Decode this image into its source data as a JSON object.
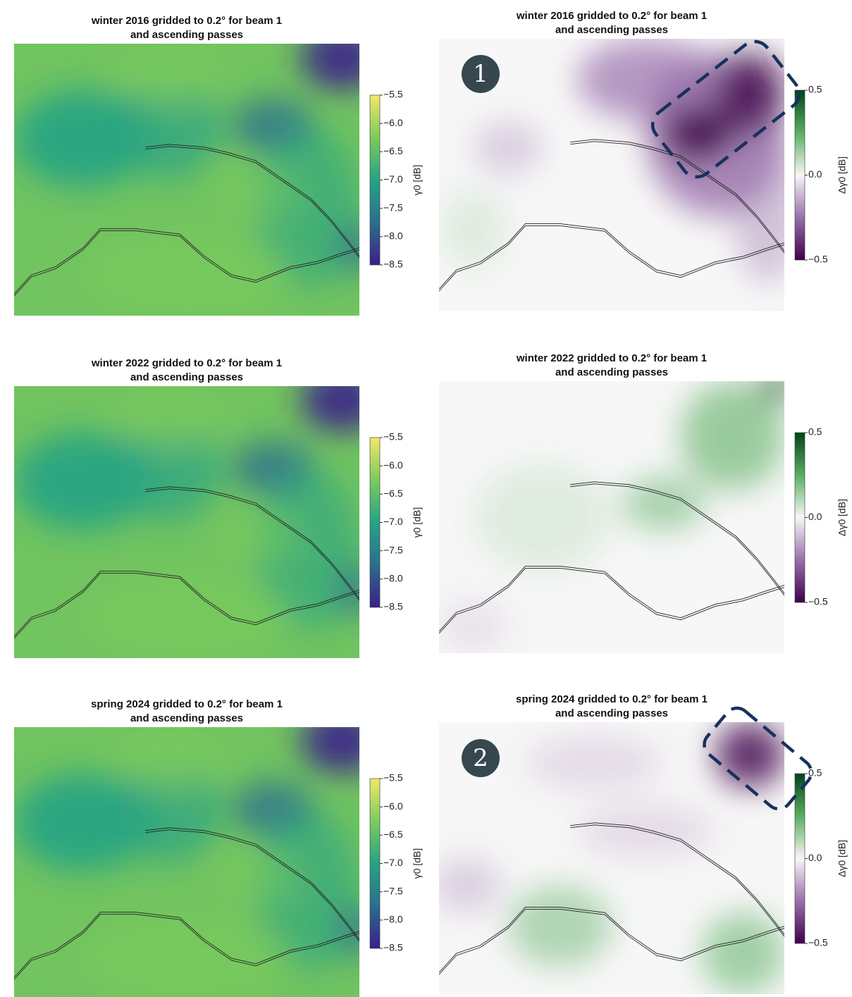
{
  "chart_data": [
    {
      "type": "heatmap",
      "title": "winter 2016 gridded to 0.2° for beam 1\nand ascending passes",
      "colorbar_label": "γ0 [dB]",
      "clim": [
        -8.5,
        -5.5
      ],
      "colormap": [
        "#3b1f8a",
        "#2c6e8e",
        "#26a384",
        "#7ccb5c",
        "#f3e76b"
      ],
      "cticks": [
        {
          "value": -5.5,
          "label": "−5.5"
        },
        {
          "value": -6.0,
          "label": "−6.0"
        },
        {
          "value": -6.5,
          "label": "−6.5"
        },
        {
          "value": -7.0,
          "label": "−7.0"
        },
        {
          "value": -7.5,
          "label": "−7.5"
        },
        {
          "value": -8.0,
          "label": "−8.0"
        },
        {
          "value": -8.5,
          "label": "−8.5"
        }
      ]
    },
    {
      "type": "heatmap",
      "title": "winter 2016 gridded to 0.2° for beam 1\nand ascending passes",
      "colorbar_label": "Δγ0 [dB]",
      "clim": [
        -0.5,
        0.5
      ],
      "colormap": [
        "#40004b",
        "#9970ab",
        "#f7f7f7",
        "#5aae61",
        "#00441b"
      ],
      "cticks": [
        {
          "value": 0.5,
          "label": "0.5"
        },
        {
          "value": 0.0,
          "label": "0.0"
        },
        {
          "value": -0.5,
          "label": "−0.5"
        }
      ],
      "annotation": "1"
    },
    {
      "type": "heatmap",
      "title": "winter 2022 gridded to 0.2° for beam 1\nand ascending passes",
      "colorbar_label": "γ0 [dB]",
      "clim": [
        -8.5,
        -5.5
      ],
      "colormap": [
        "#3b1f8a",
        "#2c6e8e",
        "#26a384",
        "#7ccb5c",
        "#f3e76b"
      ],
      "cticks": [
        {
          "value": -5.5,
          "label": "−5.5"
        },
        {
          "value": -6.0,
          "label": "−6.0"
        },
        {
          "value": -6.5,
          "label": "−6.5"
        },
        {
          "value": -7.0,
          "label": "−7.0"
        },
        {
          "value": -7.5,
          "label": "−7.5"
        },
        {
          "value": -8.0,
          "label": "−8.0"
        },
        {
          "value": -8.5,
          "label": "−8.5"
        }
      ]
    },
    {
      "type": "heatmap",
      "title": "winter 2022 gridded to 0.2° for beam 1\nand ascending passes",
      "colorbar_label": "Δγ0 [dB]",
      "clim": [
        -0.5,
        0.5
      ],
      "colormap": [
        "#40004b",
        "#9970ab",
        "#f7f7f7",
        "#5aae61",
        "#00441b"
      ],
      "cticks": [
        {
          "value": 0.5,
          "label": "0.5"
        },
        {
          "value": 0.0,
          "label": "0.0"
        },
        {
          "value": -0.5,
          "label": "−0.5"
        }
      ]
    },
    {
      "type": "heatmap",
      "title": "spring 2024 gridded to 0.2° for beam 1\nand ascending passes",
      "colorbar_label": "γ0 [dB]",
      "clim": [
        -8.5,
        -5.5
      ],
      "colormap": [
        "#3b1f8a",
        "#2c6e8e",
        "#26a384",
        "#7ccb5c",
        "#f3e76b"
      ],
      "cticks": [
        {
          "value": -5.5,
          "label": "−5.5"
        },
        {
          "value": -6.0,
          "label": "−6.0"
        },
        {
          "value": -6.5,
          "label": "−6.5"
        },
        {
          "value": -7.0,
          "label": "−7.0"
        },
        {
          "value": -7.5,
          "label": "−7.5"
        },
        {
          "value": -8.0,
          "label": "−8.0"
        },
        {
          "value": -8.5,
          "label": "−8.5"
        }
      ]
    },
    {
      "type": "heatmap",
      "title": "spring 2024 gridded to 0.2° for beam 1\nand ascending passes",
      "colorbar_label": "Δγ0 [dB]",
      "clim": [
        -0.5,
        0.5
      ],
      "colormap": [
        "#40004b",
        "#9970ab",
        "#f7f7f7",
        "#5aae61",
        "#00441b"
      ],
      "cticks": [
        {
          "value": 0.5,
          "label": "0.5"
        },
        {
          "value": 0.0,
          "label": "0.0"
        },
        {
          "value": -0.5,
          "label": "−0.5"
        }
      ],
      "annotation": "2"
    }
  ]
}
